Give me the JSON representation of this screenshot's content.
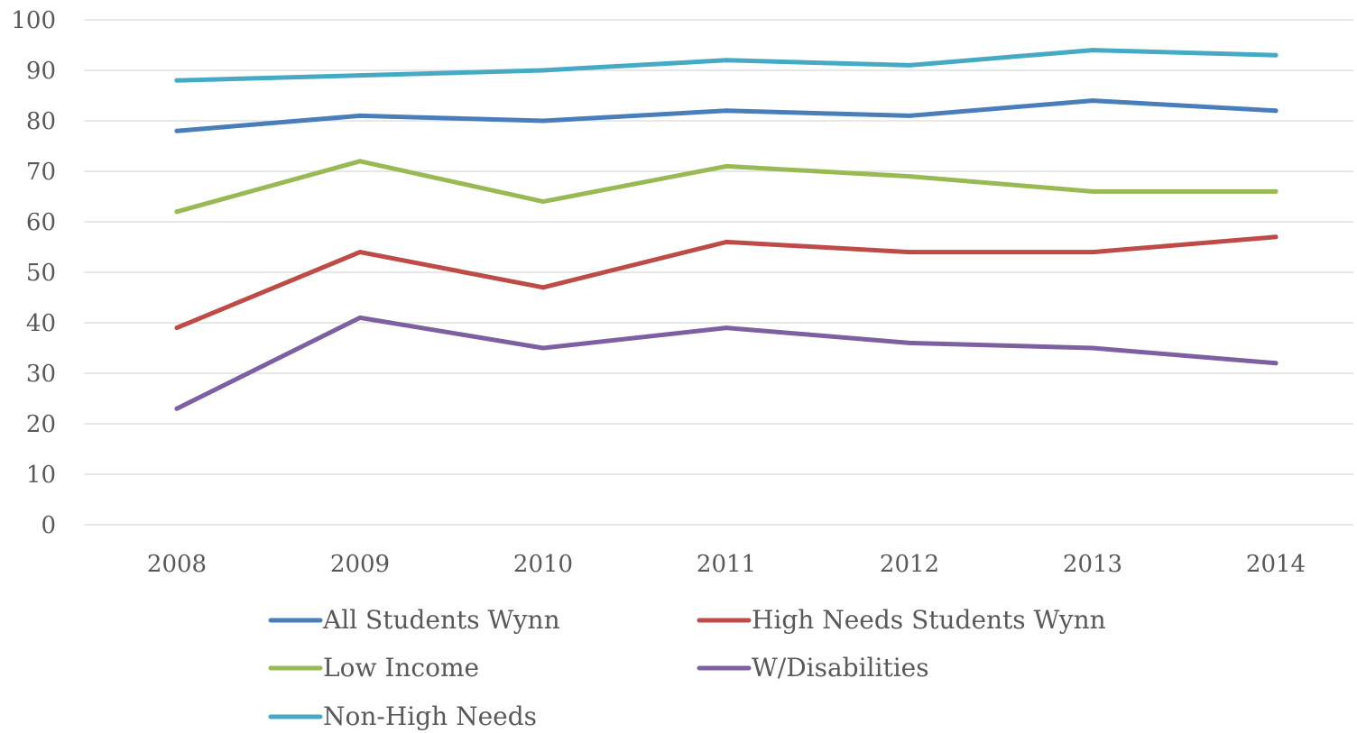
{
  "chart_data": {
    "type": "line",
    "title": "",
    "xlabel": "",
    "ylabel": "",
    "categories": [
      "2008",
      "2009",
      "2010",
      "2011",
      "2012",
      "2013",
      "2014"
    ],
    "y_ticks": [
      "0",
      "10",
      "20",
      "30",
      "40",
      "50",
      "60",
      "70",
      "80",
      "90",
      "100"
    ],
    "ylim": [
      0,
      100
    ],
    "grid": true,
    "legend_position": "bottom",
    "series": [
      {
        "name": "All Students Wynn",
        "color": "#4a7ebb",
        "values": [
          78,
          81,
          80,
          82,
          81,
          84,
          82
        ]
      },
      {
        "name": "High Needs Students Wynn",
        "color": "#be4b48",
        "values": [
          39,
          54,
          47,
          56,
          54,
          54,
          57
        ]
      },
      {
        "name": "Low Income",
        "color": "#98b954",
        "values": [
          62,
          72,
          64,
          71,
          69,
          66,
          66
        ]
      },
      {
        "name": "W/Disabilities",
        "color": "#7d60a0",
        "values": [
          23,
          41,
          35,
          39,
          36,
          35,
          32
        ]
      },
      {
        "name": "Non-High Needs",
        "color": "#46aac4",
        "values": [
          88,
          89,
          90,
          92,
          91,
          94,
          93
        ]
      }
    ]
  }
}
